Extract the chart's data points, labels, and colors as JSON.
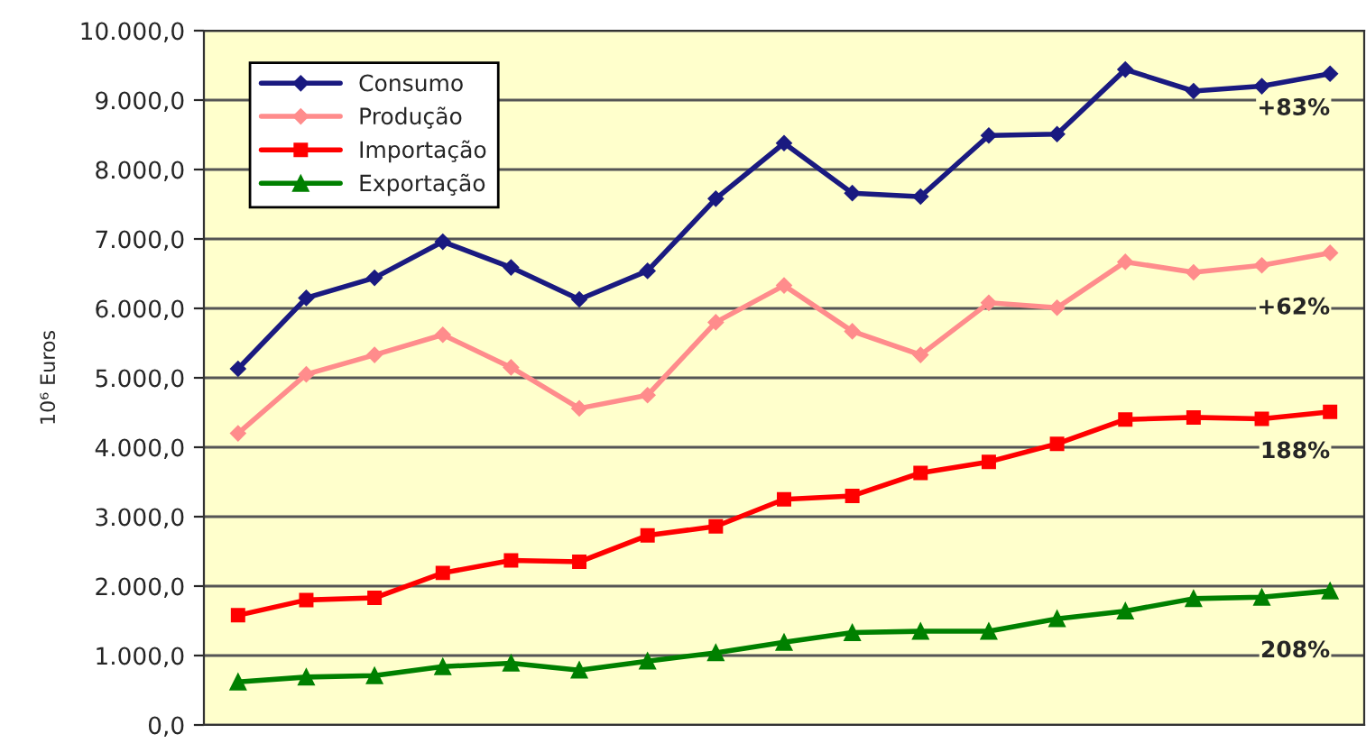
{
  "chart_data": {
    "type": "line",
    "ylabel": "10⁶ Euros",
    "categories": [
      null,
      null,
      null,
      null,
      null,
      null,
      null,
      null,
      null,
      null,
      null,
      null,
      null,
      null,
      null,
      null,
      null
    ],
    "series": [
      {
        "name": "Consumo",
        "color": "#1a1a80",
        "marker": "diamond",
        "values": [
          5130,
          6150,
          6440,
          6960,
          6590,
          6130,
          6540,
          7580,
          8380,
          7660,
          7610,
          8490,
          8510,
          9440,
          9130,
          9200,
          9380
        ]
      },
      {
        "name": "Produção",
        "color": "#ff8c8c",
        "marker": "diamond",
        "values": [
          4200,
          5050,
          5330,
          5620,
          5150,
          4560,
          4750,
          5800,
          6330,
          5670,
          5330,
          6080,
          6010,
          6670,
          6520,
          6620,
          6800
        ]
      },
      {
        "name": "Importação",
        "color": "#ff0000",
        "marker": "square",
        "values": [
          1580,
          1800,
          1830,
          2190,
          2370,
          2350,
          2730,
          2860,
          3250,
          3300,
          3630,
          3790,
          4050,
          4400,
          4430,
          4410,
          4510
        ]
      },
      {
        "name": "Exportação",
        "color": "#008000",
        "marker": "triangle",
        "values": [
          620,
          690,
          710,
          840,
          890,
          790,
          920,
          1040,
          1190,
          1330,
          1350,
          1350,
          1530,
          1640,
          1820,
          1840,
          1930
        ]
      }
    ],
    "ylim": [
      0,
      10000
    ],
    "yticks": [
      {
        "value": 0,
        "label": "0,0"
      },
      {
        "value": 1000,
        "label": "1.000,0"
      },
      {
        "value": 2000,
        "label": "2.000,0"
      },
      {
        "value": 3000,
        "label": "3.000,0"
      },
      {
        "value": 4000,
        "label": "4.000,0"
      },
      {
        "value": 5000,
        "label": "5.000,0"
      },
      {
        "value": 6000,
        "label": "6.000,0"
      },
      {
        "value": 7000,
        "label": "7.000,0"
      },
      {
        "value": 8000,
        "label": "8.000,0"
      },
      {
        "value": 9000,
        "label": "9.000,0"
      },
      {
        "value": 10000,
        "label": "10.000,0"
      }
    ],
    "annotations": [
      "+83%",
      "+62%",
      "188%",
      "208%"
    ],
    "grid": "y",
    "legend": "top left",
    "tick_labels": "y"
  }
}
